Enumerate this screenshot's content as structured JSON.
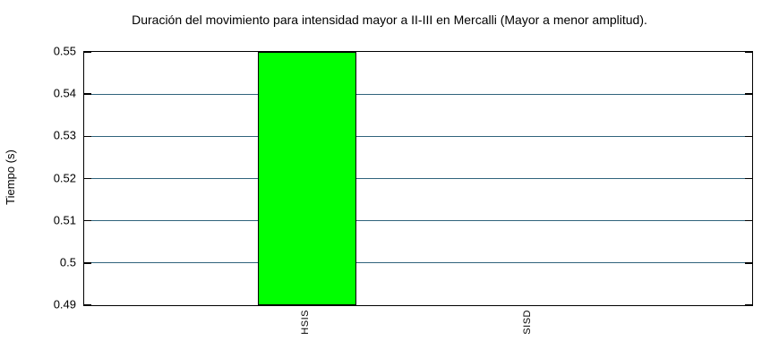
{
  "chart_data": {
    "type": "bar",
    "title": "Duración del movimiento para intensidad mayor a II-III en Mercalli (Mayor a menor amplitud).",
    "xlabel": "",
    "ylabel": "Tiempo (s)",
    "categories": [
      "HSIS",
      "SISD"
    ],
    "values": [
      0.55,
      0.49
    ],
    "ylim": [
      0.49,
      0.55
    ],
    "ytick_step": 0.01,
    "ytick_labels": [
      "0.55",
      "0.54",
      "0.53",
      "0.52",
      "0.51",
      "0.5",
      "0.49"
    ],
    "grid": true,
    "legend": "none",
    "colors": {
      "bar_fill": "#00ff00",
      "bar_border": "#000000",
      "grid_line": "#30637c",
      "axis_border": "#000000",
      "text": "#000000",
      "background": "#ffffff"
    }
  }
}
